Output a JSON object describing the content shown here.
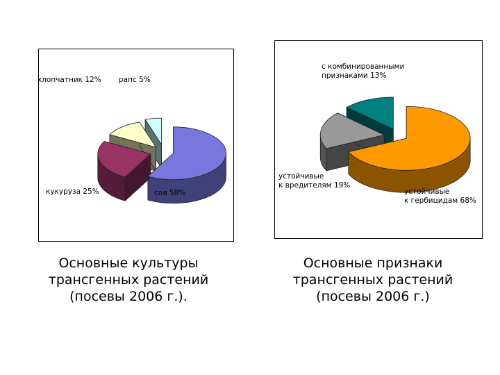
{
  "chart_data": [
    {
      "type": "pie",
      "title": "Основные культуры трансгенных растений (посевы 2006 г.).",
      "title_lines": [
        "Основные культуры",
        "трансгенных растений",
        "(посевы 2006 г.)."
      ],
      "slices": [
        {
          "label": "соя 58%",
          "value": 58,
          "color": "#7777dd"
        },
        {
          "label": "кукуруза 25%",
          "value": 25,
          "color": "#993366"
        },
        {
          "label": "хлопчатник 12%",
          "value": 12,
          "color": "#ffffcc"
        },
        {
          "label": "рапс 5%",
          "value": 5,
          "color": "#ccffff"
        }
      ]
    },
    {
      "type": "pie",
      "title": "Основные признаки трансгенных растений (посевы 2006 г.)",
      "title_lines": [
        "Основные признаки",
        "трансгенных растений",
        "(посевы 2006 г.)"
      ],
      "slices": [
        {
          "label_lines": [
            "устойчивые",
            "к гербицидам 68%"
          ],
          "value": 68,
          "color": "#ff9900"
        },
        {
          "label_lines": [
            "устойчивые",
            "к вредителям 19%"
          ],
          "value": 19,
          "color": "#999999"
        },
        {
          "label_lines": [
            "с комбинированными",
            "признаками 13%"
          ],
          "value": 13,
          "color": "#008080"
        }
      ]
    }
  ]
}
